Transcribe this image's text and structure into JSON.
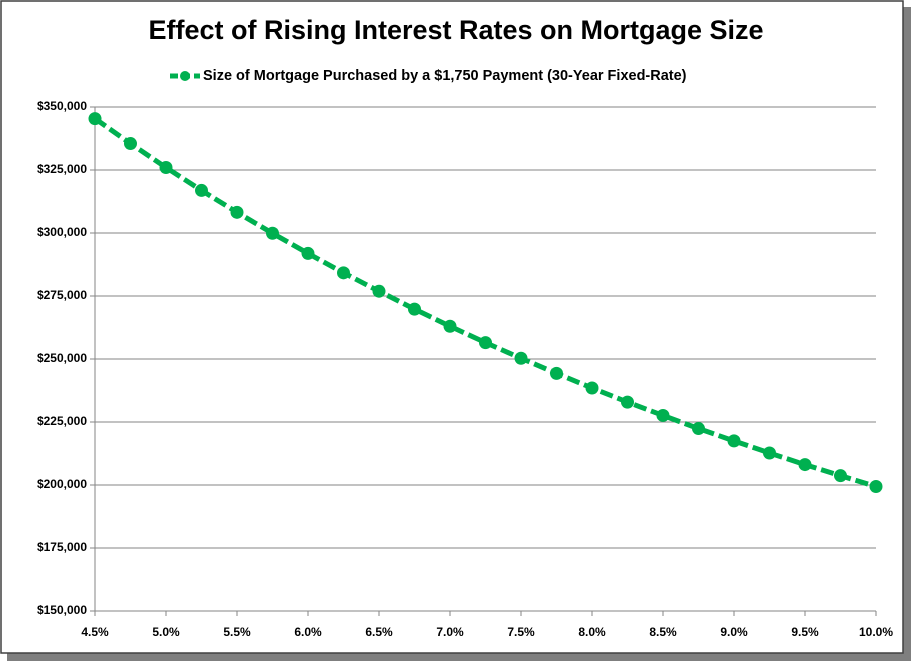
{
  "chart_data": {
    "type": "line",
    "title": "Effect of Rising Interest Rates on Mortgage Size",
    "x": [
      4.5,
      4.75,
      5.0,
      5.25,
      5.5,
      5.75,
      6.0,
      6.25,
      6.5,
      6.75,
      7.0,
      7.25,
      7.5,
      7.75,
      8.0,
      8.25,
      8.5,
      8.75,
      9.0,
      9.25,
      9.5,
      9.75,
      10.0
    ],
    "series": [
      {
        "name": "Size of Mortgage Purchased by a $1,750 Payment (30-Year Fixed-Rate)",
        "color": "#00b050",
        "values": [
          345400,
          335500,
          326000,
          316900,
          308200,
          299900,
          291900,
          284200,
          276900,
          269800,
          263000,
          256500,
          250300,
          244300,
          238500,
          232900,
          227600,
          222400,
          217500,
          212700,
          208100,
          203700,
          199400
        ]
      }
    ],
    "xlim": [
      4.5,
      10.0
    ],
    "xticks": [
      {
        "value": 4.5,
        "label": "4.5%"
      },
      {
        "value": 5.0,
        "label": "5.0%"
      },
      {
        "value": 5.5,
        "label": "5.5%"
      },
      {
        "value": 6.0,
        "label": "6.0%"
      },
      {
        "value": 6.5,
        "label": "6.5%"
      },
      {
        "value": 7.0,
        "label": "7.0%"
      },
      {
        "value": 7.5,
        "label": "7.5%"
      },
      {
        "value": 8.0,
        "label": "8.0%"
      },
      {
        "value": 8.5,
        "label": "8.5%"
      },
      {
        "value": 9.0,
        "label": "9.0%"
      },
      {
        "value": 9.5,
        "label": "9.5%"
      },
      {
        "value": 10.0,
        "label": "10.0%"
      }
    ],
    "ylim": [
      150000,
      350000
    ],
    "yticks": [
      {
        "value": 150000,
        "label": "$150,000"
      },
      {
        "value": 175000,
        "label": "$175,000"
      },
      {
        "value": 200000,
        "label": "$200,000"
      },
      {
        "value": 225000,
        "label": "$225,000"
      },
      {
        "value": 250000,
        "label": "$250,000"
      },
      {
        "value": 275000,
        "label": "$275,000"
      },
      {
        "value": 300000,
        "label": "$300,000"
      },
      {
        "value": 325000,
        "label": "$325,000"
      },
      {
        "value": 350000,
        "label": "$350,000"
      }
    ],
    "grid": true,
    "legend": "top"
  }
}
